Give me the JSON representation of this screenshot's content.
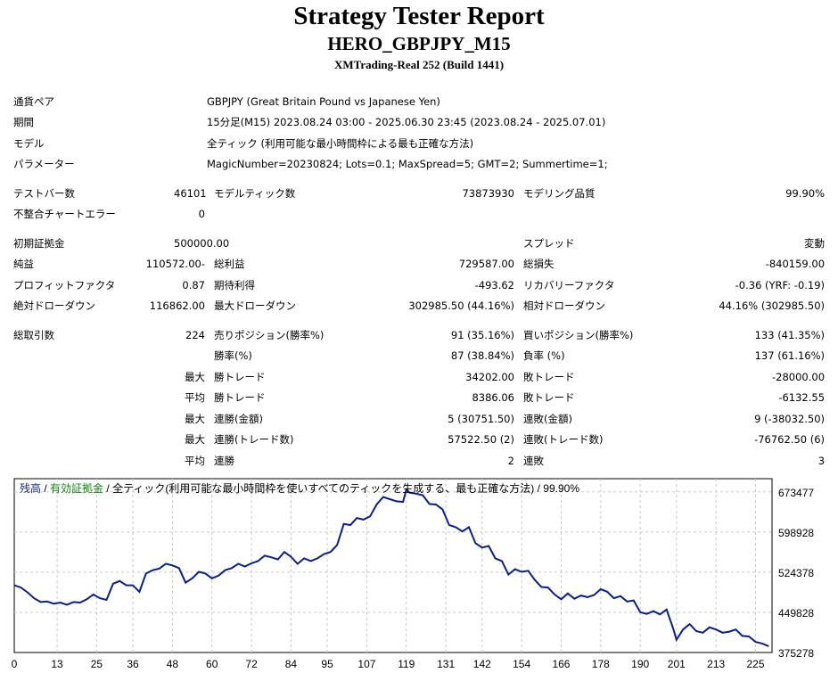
{
  "header": {
    "title": "Strategy Tester Report",
    "subtitle": "HERO_GBPJPY_M15",
    "broker": "XMTrading-Real 252 (Build 1441)"
  },
  "settings": {
    "symbol_label": "通貨ペア",
    "symbol": "GBPJPY (Great Britain Pound vs Japanese Yen)",
    "period_label": "期間",
    "period": "15分足(M15) 2023.08.24 03:00 - 2025.06.30 23:45 (2023.08.24 - 2025.07.01)",
    "model_label": "モデル",
    "model": "全ティック (利用可能な最小時間枠による最も正確な方法)",
    "params_label": "パラメーター",
    "params": "MagicNumber=20230824; Lots=0.1; MaxSpread=5; GMT=2; Summertime=1;"
  },
  "bars": {
    "bars_label": "テストバー数",
    "bars": "46101",
    "ticks_label": "モデルティック数",
    "ticks": "73873930",
    "quality_label": "モデリング品質",
    "quality": "99.90%",
    "errors_label": "不整合チャートエラー",
    "errors": "0"
  },
  "money": {
    "deposit_label": "初期証拠金",
    "deposit": "500000.00",
    "spread_label": "スプレッド",
    "spread": "変動",
    "net_label": "純益",
    "net": "-110572.00",
    "gross_profit_label": "総利益",
    "gross_profit": "729587.00",
    "gross_loss_label": "総損失",
    "gross_loss": "-840159.00",
    "pf_label": "プロフィットファクタ",
    "pf": "0.87",
    "expected_label": "期待利得",
    "expected": "-493.62",
    "recovery_label": "リカバリーファクタ",
    "recovery": "-0.36 (YRF: -0.19)",
    "abs_dd_label": "絶対ドローダウン",
    "abs_dd": "116862.00",
    "max_dd_label": "最大ドローダウン",
    "max_dd": "302985.50 (44.16%)",
    "rel_dd_label": "相対ドローダウン",
    "rel_dd": "44.16% (302985.50)"
  },
  "trades": {
    "total_label": "総取引数",
    "total": "224",
    "short_label": "売りポジション(勝率%)",
    "short": "91 (35.16%)",
    "long_label": "買いポジション(勝率%)",
    "long": "133 (41.35%)",
    "win_label": "勝率(%)",
    "win": "87 (38.84%)",
    "loss_label": "負率 (%)",
    "loss": "137 (61.16%)",
    "largest_label": "最大",
    "largest_win_label": "勝トレード",
    "largest_win": "34202.00",
    "largest_loss_label": "敗トレード",
    "largest_loss": "-28000.00",
    "average_label": "平均",
    "avg_win_label": "勝トレード",
    "avg_win": "8386.06",
    "avg_loss_label": "敗トレード",
    "avg_loss": "-6132.55",
    "max_cons_money_label": "最大",
    "max_cons_wins_money_label": "連勝(金額)",
    "max_cons_wins_money": "5 (30751.50)",
    "max_cons_losses_money_label": "連敗(金額)",
    "max_cons_losses_money": "9 (-38032.50)",
    "max_cons_count_label": "最大",
    "max_cons_profit_label": "連勝(トレード数)",
    "max_cons_profit": "57522.50 (2)",
    "max_cons_loss_label": "連敗(トレード数)",
    "max_cons_loss": "-76762.50 (6)",
    "avg_cons_label": "平均",
    "avg_cons_wins_label": "連勝",
    "avg_cons_wins": "2",
    "avg_cons_losses_label": "連敗",
    "avg_cons_losses": "3"
  },
  "chart_data": {
    "type": "line",
    "legend": {
      "balance": "残高",
      "sep1": " / ",
      "equity": "有効証拠金",
      "sep2": " / ",
      "rest": "全ティック(利用可能な最小時間枠を使いすべてのティックを生成する、最も正確な方法) / 99.90%"
    },
    "colors": {
      "balance": "#0a1f8f",
      "equity": "#138a13",
      "grid": "#c8c8c8"
    },
    "x_ticks": [
      "0",
      "13",
      "25",
      "36",
      "48",
      "60",
      "72",
      "84",
      "95",
      "107",
      "119",
      "131",
      "142",
      "154",
      "166",
      "178",
      "190",
      "201",
      "213",
      "225"
    ],
    "y_ticks": [
      "673477",
      "598928",
      "524378",
      "449828",
      "375278"
    ],
    "xlim": [
      0,
      230
    ],
    "ylim": [
      375278,
      698000
    ],
    "grid": true,
    "series": [
      {
        "x": [
          0,
          2,
          4,
          6,
          8,
          10,
          12,
          14,
          16,
          18,
          20,
          22,
          24,
          26,
          28,
          30,
          32,
          34,
          36,
          38,
          40,
          42,
          44,
          46,
          48,
          50,
          52,
          54,
          56,
          58,
          60,
          62,
          64,
          66,
          68,
          70,
          72,
          74,
          76,
          78,
          80,
          82,
          84,
          86,
          88,
          90,
          92,
          94,
          96,
          98,
          100,
          102,
          104,
          106,
          108,
          110,
          112,
          114,
          116,
          118,
          119,
          120,
          122,
          124,
          126,
          128,
          130,
          132,
          134,
          136,
          138,
          140,
          142,
          144,
          146,
          148,
          150,
          152,
          154,
          156,
          158,
          160,
          162,
          164,
          166,
          168,
          170,
          172,
          174,
          176,
          178,
          180,
          182,
          184,
          186,
          188,
          190,
          192,
          194,
          196,
          198,
          200,
          201,
          203,
          205,
          207,
          209,
          211,
          213,
          215,
          217,
          219,
          221,
          223,
          225,
          227,
          229
        ],
        "y": [
          500000,
          496000,
          487000,
          476000,
          469000,
          470000,
          466000,
          468000,
          464000,
          469000,
          468000,
          474000,
          483000,
          476000,
          473000,
          503000,
          508000,
          500000,
          500000,
          488000,
          522000,
          528000,
          531000,
          540000,
          537000,
          532000,
          505000,
          513000,
          525000,
          522000,
          513000,
          518000,
          528000,
          532000,
          540000,
          535000,
          541000,
          545000,
          555000,
          552000,
          548000,
          562000,
          553000,
          540000,
          550000,
          545000,
          550000,
          558000,
          562000,
          575000,
          614000,
          612000,
          625000,
          622000,
          628000,
          650000,
          664000,
          660000,
          656000,
          655000,
          678000,
          672000,
          670000,
          667000,
          651000,
          650000,
          641000,
          612000,
          608000,
          600000,
          608000,
          578000,
          570000,
          573000,
          550000,
          545000,
          520000,
          530000,
          525000,
          527000,
          510000,
          497000,
          496000,
          483000,
          474000,
          485000,
          475000,
          481000,
          478000,
          482000,
          493000,
          488000,
          476000,
          480000,
          470000,
          472000,
          450000,
          447000,
          452000,
          446000,
          455000,
          420000,
          399000,
          418000,
          428000,
          415000,
          412000,
          422000,
          418000,
          412000,
          414000,
          418000,
          406000,
          405000,
          395000,
          392000,
          387000
        ]
      }
    ]
  }
}
